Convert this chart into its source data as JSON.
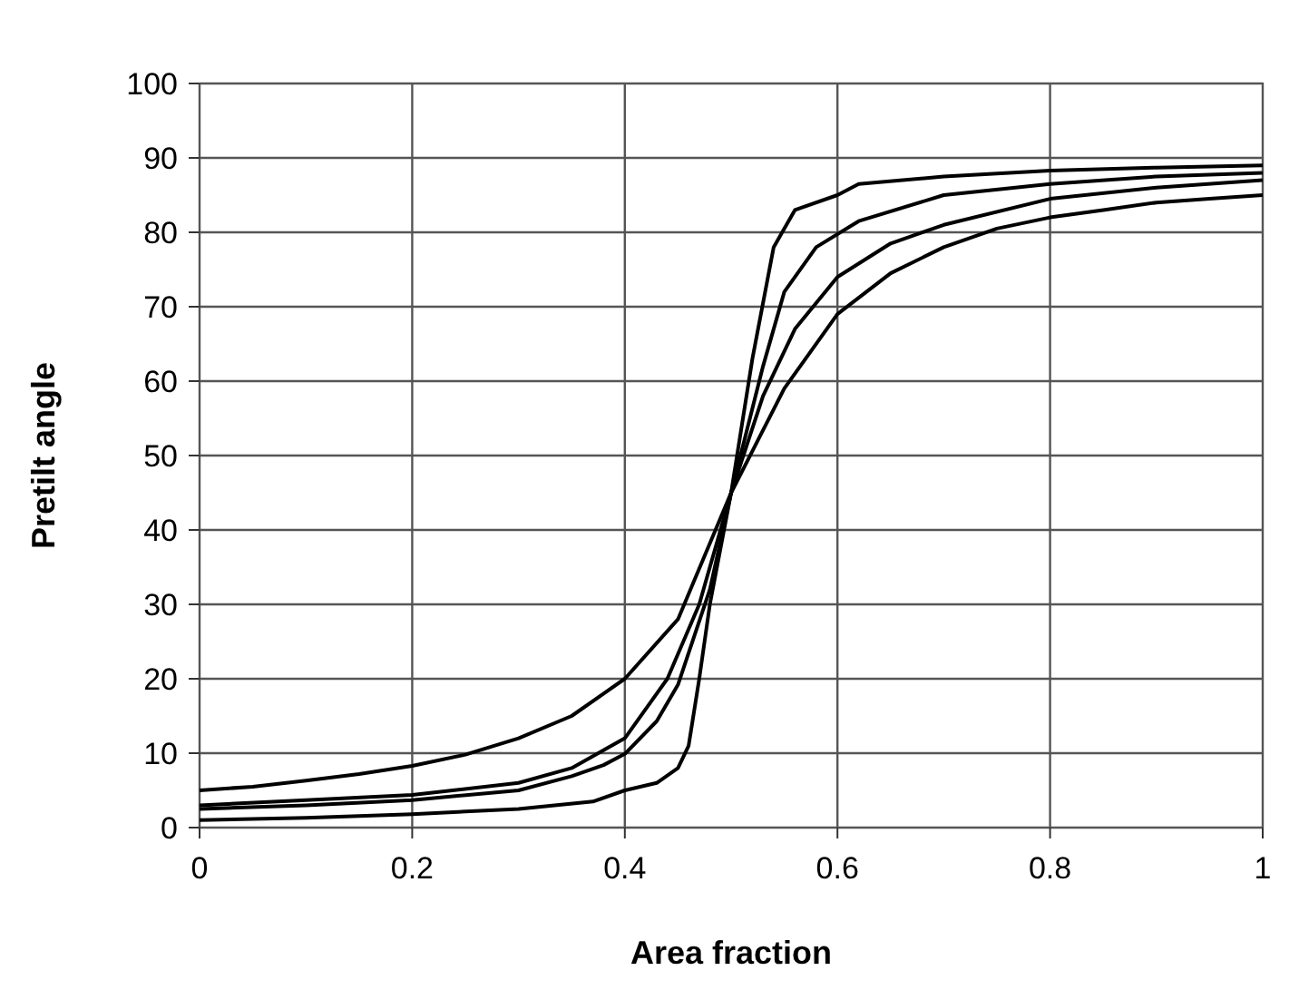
{
  "chart_data": {
    "type": "line",
    "xlabel": "Area fraction",
    "ylabel": "Pretilt angle",
    "xlim": [
      0,
      1
    ],
    "ylim": [
      0,
      100
    ],
    "xticks": [
      0,
      0.2,
      0.4,
      0.6,
      0.8,
      1
    ],
    "yticks": [
      0,
      10,
      20,
      30,
      40,
      50,
      60,
      70,
      80,
      90,
      100
    ],
    "grid": true,
    "marker": "none",
    "line_style": "solid",
    "series": [
      {
        "color": "#000000",
        "x": [
          0,
          0.05,
          0.1,
          0.15,
          0.2,
          0.25,
          0.3,
          0.35,
          0.4,
          0.45,
          0.5,
          0.55,
          0.6,
          0.65,
          0.7,
          0.75,
          0.8,
          0.85,
          0.9,
          0.95,
          1
        ],
        "values": [
          5,
          5.5,
          6.3,
          7.2,
          8.3,
          9.8,
          12,
          15,
          20,
          28,
          45,
          59,
          69,
          74.5,
          78,
          80.5,
          82,
          83,
          84,
          84.5,
          85
        ]
      },
      {
        "color": "#000000",
        "x": [
          0,
          0.1,
          0.2,
          0.3,
          0.35,
          0.4,
          0.44,
          0.47,
          0.5,
          0.53,
          0.56,
          0.6,
          0.65,
          0.7,
          0.8,
          0.9,
          1
        ],
        "values": [
          3,
          3.7,
          4.4,
          6,
          8,
          12,
          20,
          30,
          45,
          58,
          67,
          74,
          78.5,
          81,
          84.5,
          86,
          87
        ]
      },
      {
        "color": "#000000",
        "x": [
          0,
          0.1,
          0.2,
          0.3,
          0.35,
          0.38,
          0.4,
          0.43,
          0.45,
          0.48,
          0.5,
          0.53,
          0.55,
          0.58,
          0.62,
          0.7,
          0.8,
          0.9,
          1
        ],
        "values": [
          2.5,
          3,
          3.7,
          5,
          6.9,
          8.4,
          9.9,
          14.3,
          19.2,
          32,
          45,
          62,
          72,
          78,
          81.5,
          85,
          86.5,
          87.5,
          88
        ]
      },
      {
        "color": "#000000",
        "x": [
          0,
          0.1,
          0.2,
          0.3,
          0.37,
          0.4,
          0.43,
          0.45,
          0.46,
          0.47,
          0.48,
          0.5,
          0.52,
          0.54,
          0.56,
          0.6,
          0.62,
          0.7,
          0.8,
          0.9,
          1
        ],
        "values": [
          1,
          1.3,
          1.8,
          2.5,
          3.5,
          5,
          6,
          8,
          11,
          20,
          30,
          45,
          63,
          78,
          83,
          85,
          86.5,
          87.5,
          88.3,
          88.7,
          89
        ]
      }
    ]
  }
}
